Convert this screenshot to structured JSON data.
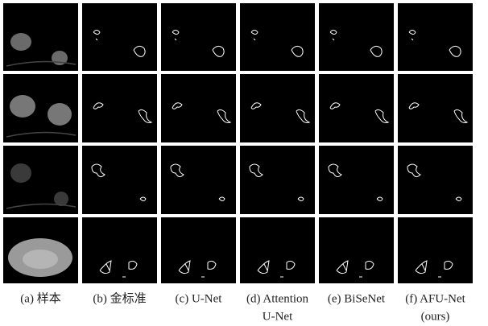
{
  "figure": {
    "panels": [
      {
        "caption": [
          "(a) 样本"
        ]
      },
      {
        "caption": [
          "(b) 金标准"
        ]
      },
      {
        "caption": [
          "(c) U-Net"
        ]
      },
      {
        "caption": [
          "(d) Attention",
          "U-Net"
        ]
      },
      {
        "caption": [
          "(e) BiSeNet"
        ]
      },
      {
        "caption": [
          "(f) AFU-Net",
          "(ours)"
        ]
      }
    ]
  }
}
